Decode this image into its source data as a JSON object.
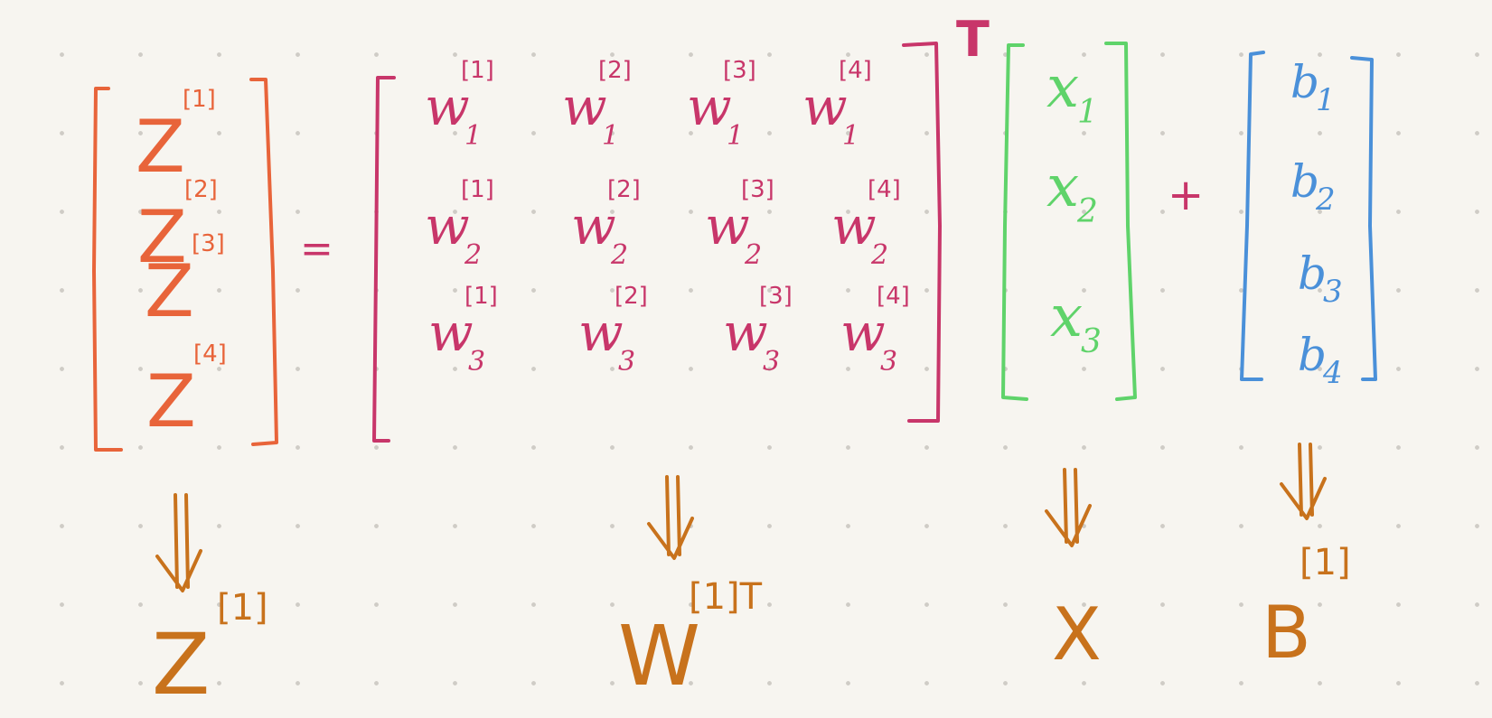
{
  "colors": {
    "z": "#e8643a",
    "w": "#c8366a",
    "x": "#5fd36a",
    "b": "#4a90d9",
    "result": "#c8721c",
    "background": "#f7f5f0"
  },
  "z_vector": {
    "entries": [
      {
        "base": "Z",
        "sup": "[1]"
      },
      {
        "base": "Z",
        "sup": "[2]"
      },
      {
        "base": "Z",
        "sup": "[3]"
      },
      {
        "base": "Z",
        "sup": "[4]"
      }
    ]
  },
  "equals_sign": "=",
  "w_matrix": {
    "transpose_mark": "T",
    "rows": [
      [
        {
          "base": "w",
          "sub": "1",
          "sup": "[1]"
        },
        {
          "base": "w",
          "sub": "1",
          "sup": "[2]"
        },
        {
          "base": "w",
          "sub": "1",
          "sup": "[3]"
        },
        {
          "base": "w",
          "sub": "1",
          "sup": "[4]"
        }
      ],
      [
        {
          "base": "w",
          "sub": "2",
          "sup": "[1]"
        },
        {
          "base": "w",
          "sub": "2",
          "sup": "[2]"
        },
        {
          "base": "w",
          "sub": "2",
          "sup": "[3]"
        },
        {
          "base": "w",
          "sub": "2",
          "sup": "[4]"
        }
      ],
      [
        {
          "base": "w",
          "sub": "3",
          "sup": "[1]"
        },
        {
          "base": "w",
          "sub": "3",
          "sup": "[2]"
        },
        {
          "base": "w",
          "sub": "3",
          "sup": "[3]"
        },
        {
          "base": "w",
          "sub": "3",
          "sup": "[4]"
        }
      ]
    ]
  },
  "x_vector": {
    "entries": [
      {
        "base": "x",
        "sub": "1"
      },
      {
        "base": "x",
        "sub": "2"
      },
      {
        "base": "x",
        "sub": "3"
      }
    ]
  },
  "plus_sign": "+",
  "b_vector": {
    "entries": [
      {
        "base": "b",
        "sub": "1"
      },
      {
        "base": "b",
        "sub": "2"
      },
      {
        "base": "b",
        "sub": "3"
      },
      {
        "base": "b",
        "sub": "4"
      }
    ]
  },
  "results": [
    {
      "base": "Z",
      "sup": "[1]",
      "name": "z"
    },
    {
      "base": "W",
      "sup": "[1]T",
      "name": "w"
    },
    {
      "base": "X",
      "sup": "",
      "name": "x"
    },
    {
      "base": "B",
      "sup": "[1]",
      "name": "b"
    }
  ]
}
